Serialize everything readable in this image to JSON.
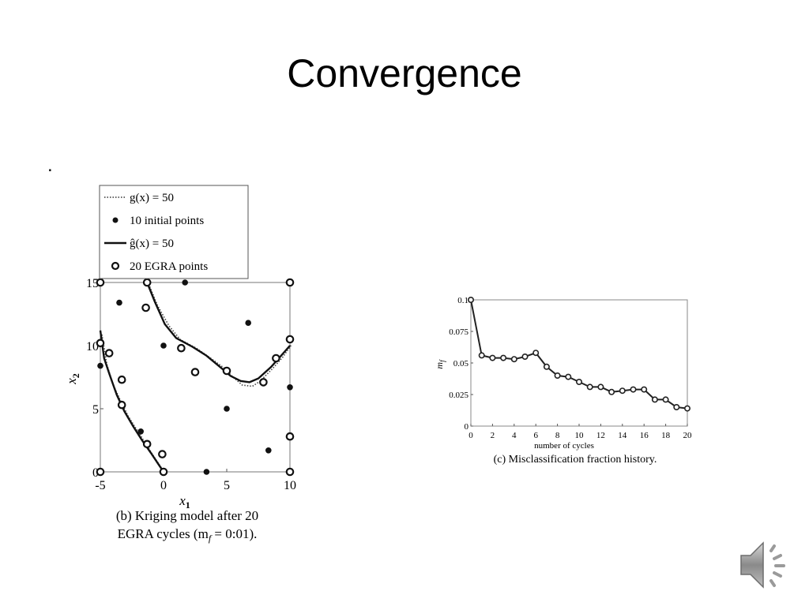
{
  "slide": {
    "title": "Convergence",
    "bullet": "."
  },
  "chart_data": [
    {
      "type": "scatter",
      "caption_line1": "(b) Kriging model after 20",
      "caption_line2": "EGRA cycles (m",
      "caption_sub": "f",
      "caption_end": " = 0:01).",
      "xlabel": "x",
      "xlabel_sub": "1",
      "ylabel": "x",
      "ylabel_sub": "2",
      "xlim": [
        -5,
        10
      ],
      "ylim": [
        0,
        15
      ],
      "xticks": [
        "-5",
        "0",
        "5",
        "10"
      ],
      "xtick_values": [
        -5,
        0,
        5,
        10
      ],
      "yticks": [
        "0",
        "5",
        "10",
        "15"
      ],
      "ytick_values": [
        0,
        5,
        10,
        15
      ],
      "legend": [
        {
          "label": "g(x) = 50",
          "marker": "dotted-line"
        },
        {
          "label": "10 initial points",
          "marker": "filled-dot"
        },
        {
          "label": "ĝ(x) = 50",
          "marker": "solid-line"
        },
        {
          "label": "20 EGRA points",
          "marker": "open-circle"
        }
      ],
      "initial_points": [
        [
          -5.0,
          8.4
        ],
        [
          -3.5,
          13.4
        ],
        [
          -1.8,
          3.2
        ],
        [
          0.0,
          10.0
        ],
        [
          1.7,
          15.0
        ],
        [
          3.4,
          0.0
        ],
        [
          5.0,
          5.0
        ],
        [
          6.7,
          11.8
        ],
        [
          8.3,
          1.7
        ],
        [
          10.0,
          6.7
        ]
      ],
      "egra_points": [
        [
          -5.0,
          15.0
        ],
        [
          -5.0,
          10.2
        ],
        [
          -4.3,
          9.4
        ],
        [
          -3.3,
          7.3
        ],
        [
          -3.3,
          5.3
        ],
        [
          -1.3,
          2.2
        ],
        [
          -0.1,
          1.4
        ],
        [
          0.0,
          0.0
        ],
        [
          -1.4,
          13.0
        ],
        [
          -1.3,
          15.0
        ],
        [
          1.4,
          9.8
        ],
        [
          2.5,
          7.9
        ],
        [
          5.0,
          8.0
        ],
        [
          7.9,
          7.1
        ],
        [
          8.9,
          9.0
        ],
        [
          10.0,
          15.0
        ],
        [
          10.0,
          10.5
        ],
        [
          10.0,
          2.8
        ],
        [
          10.0,
          0.0
        ],
        [
          -5.0,
          0.0
        ]
      ],
      "g_true_curves": [
        [
          [
            -1.3,
            15.0
          ],
          [
            -0.6,
            13.3
          ],
          [
            0.3,
            11.7
          ],
          [
            1.2,
            10.6
          ],
          [
            2.5,
            9.9
          ],
          [
            3.5,
            9.2
          ],
          [
            4.6,
            8.4
          ],
          [
            5.3,
            7.7
          ],
          [
            6.1,
            7.0
          ],
          [
            6.9,
            6.9
          ],
          [
            7.5,
            7.3
          ],
          [
            8.5,
            8.3
          ],
          [
            9.3,
            9.2
          ],
          [
            10.0,
            10.2
          ]
        ],
        [
          [
            -5.0,
            11.0
          ],
          [
            -4.6,
            8.6
          ],
          [
            -4.1,
            7.0
          ],
          [
            -3.5,
            5.7
          ],
          [
            -2.9,
            4.5
          ],
          [
            -2.2,
            3.4
          ],
          [
            -1.5,
            2.3
          ],
          [
            -0.8,
            1.2
          ],
          [
            -0.2,
            0.3
          ],
          [
            0.0,
            0.0
          ]
        ]
      ],
      "g_hat_curves": [
        [
          [
            -1.3,
            15.0
          ],
          [
            -0.7,
            13.5
          ],
          [
            0.1,
            11.7
          ],
          [
            1.0,
            10.6
          ],
          [
            2.3,
            9.9
          ],
          [
            3.4,
            9.2
          ],
          [
            4.6,
            8.2
          ],
          [
            5.3,
            7.6
          ],
          [
            6.1,
            7.2
          ],
          [
            6.8,
            7.1
          ],
          [
            7.5,
            7.4
          ],
          [
            8.5,
            8.3
          ],
          [
            9.3,
            9.2
          ],
          [
            10.0,
            10.0
          ]
        ],
        [
          [
            -5.0,
            11.2
          ],
          [
            -4.7,
            9.0
          ],
          [
            -4.3,
            7.8
          ],
          [
            -3.7,
            6.1
          ],
          [
            -3.1,
            4.8
          ],
          [
            -2.4,
            3.6
          ],
          [
            -1.7,
            2.5
          ],
          [
            -1.0,
            1.5
          ],
          [
            -0.4,
            0.6
          ],
          [
            0.0,
            0.0
          ]
        ]
      ]
    },
    {
      "type": "line",
      "caption": "(c) Misclassification fraction history.",
      "xlabel": "number of cycles",
      "ylabel": "m",
      "ylabel_sub": "f",
      "xlim": [
        0,
        20
      ],
      "ylim": [
        0,
        0.1
      ],
      "xticks": [
        "0",
        "2",
        "4",
        "6",
        "8",
        "10",
        "12",
        "14",
        "16",
        "18",
        "20"
      ],
      "xtick_values": [
        0,
        2,
        4,
        6,
        8,
        10,
        12,
        14,
        16,
        18,
        20
      ],
      "yticks": [
        "0",
        "0.025",
        "0.05",
        "0.075",
        "0.1"
      ],
      "ytick_values": [
        0,
        0.025,
        0.05,
        0.075,
        0.1
      ],
      "x": [
        0,
        1,
        2,
        3,
        4,
        5,
        6,
        7,
        8,
        9,
        10,
        11,
        12,
        13,
        14,
        15,
        16,
        17,
        18,
        19,
        20
      ],
      "values": [
        0.1,
        0.056,
        0.054,
        0.054,
        0.053,
        0.055,
        0.058,
        0.047,
        0.04,
        0.039,
        0.035,
        0.031,
        0.031,
        0.027,
        0.028,
        0.029,
        0.029,
        0.021,
        0.021,
        0.015,
        0.014
      ]
    }
  ],
  "icons": {
    "speaker": "speaker-icon"
  }
}
